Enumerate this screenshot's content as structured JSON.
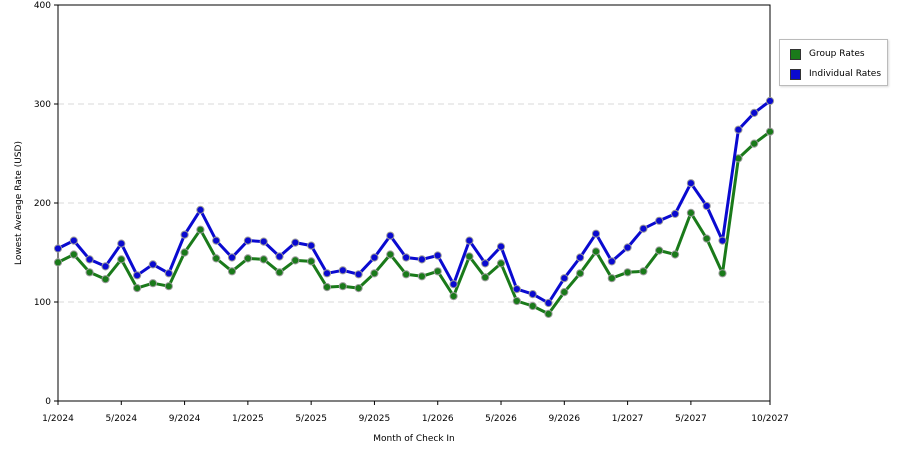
{
  "chart_data": {
    "type": "line",
    "xlabel": "Month of Check In",
    "ylabel": "Lowest Average Rate (USD)",
    "ylim": [
      0,
      400
    ],
    "yticks": [
      0,
      100,
      200,
      300,
      400
    ],
    "x_start": "1/2024",
    "xticks": [
      "1/2024",
      "5/2024",
      "9/2024",
      "1/2025",
      "5/2025",
      "9/2025",
      "1/2026",
      "5/2026",
      "9/2026",
      "1/2027",
      "5/2027",
      "10/2027"
    ],
    "grid": "horizontal dashed",
    "legend_position": "right",
    "series": [
      {
        "name": "Group Rates",
        "color": "#1a7a1a",
        "values": [
          140,
          148,
          130,
          123,
          143,
          114,
          119,
          116,
          150,
          173,
          144,
          131,
          144,
          143,
          130,
          142,
          141,
          115,
          116,
          114,
          129,
          148,
          128,
          126,
          131,
          106,
          146,
          125,
          139,
          101,
          96,
          88,
          110,
          129,
          151,
          124,
          130,
          131,
          152,
          148,
          190,
          164,
          129,
          245,
          260,
          272
        ]
      },
      {
        "name": "Individual Rates",
        "color": "#0a0ad0",
        "values": [
          154,
          162,
          143,
          136,
          159,
          127,
          138,
          129,
          168,
          193,
          162,
          145,
          162,
          161,
          146,
          160,
          157,
          129,
          132,
          128,
          145,
          167,
          145,
          143,
          147,
          118,
          162,
          139,
          156,
          113,
          108,
          99,
          124,
          145,
          169,
          141,
          155,
          174,
          182,
          189,
          220,
          197,
          162,
          274,
          291,
          303
        ]
      }
    ]
  }
}
